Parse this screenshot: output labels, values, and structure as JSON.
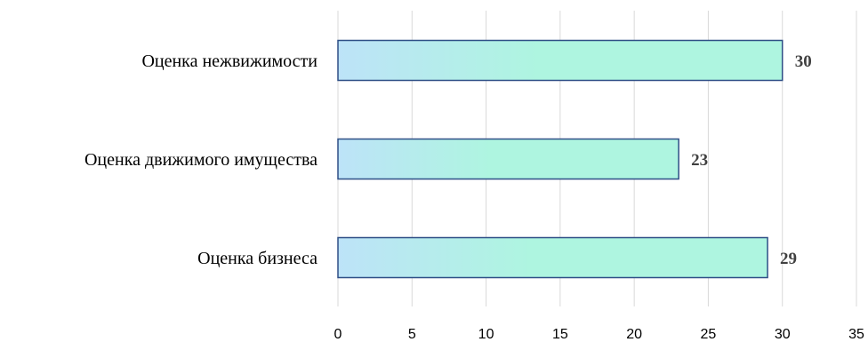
{
  "chart_data": {
    "type": "bar",
    "orientation": "horizontal",
    "title": "",
    "xlabel": "",
    "ylabel": "",
    "categories": [
      "Оценка нежвижимости",
      "Оценка движимого имущества",
      "Оценка бизнеса"
    ],
    "values": [
      30,
      23,
      29
    ],
    "data_labels": [
      "30",
      "23",
      "29"
    ],
    "xlim": [
      0,
      35
    ],
    "xticks": [
      0,
      5,
      10,
      15,
      20,
      25,
      30,
      35
    ],
    "xtick_labels": [
      "0",
      "5",
      "10",
      "15",
      "20",
      "25",
      "30",
      "35"
    ],
    "grid": true,
    "legend": "none",
    "colors": {
      "bar_gradient_start": "#bde3f8",
      "bar_gradient_end": "#aef5e0",
      "bar_border": "#2e4f86",
      "grid": "#d9d9d9",
      "data_label": "#404040"
    }
  }
}
